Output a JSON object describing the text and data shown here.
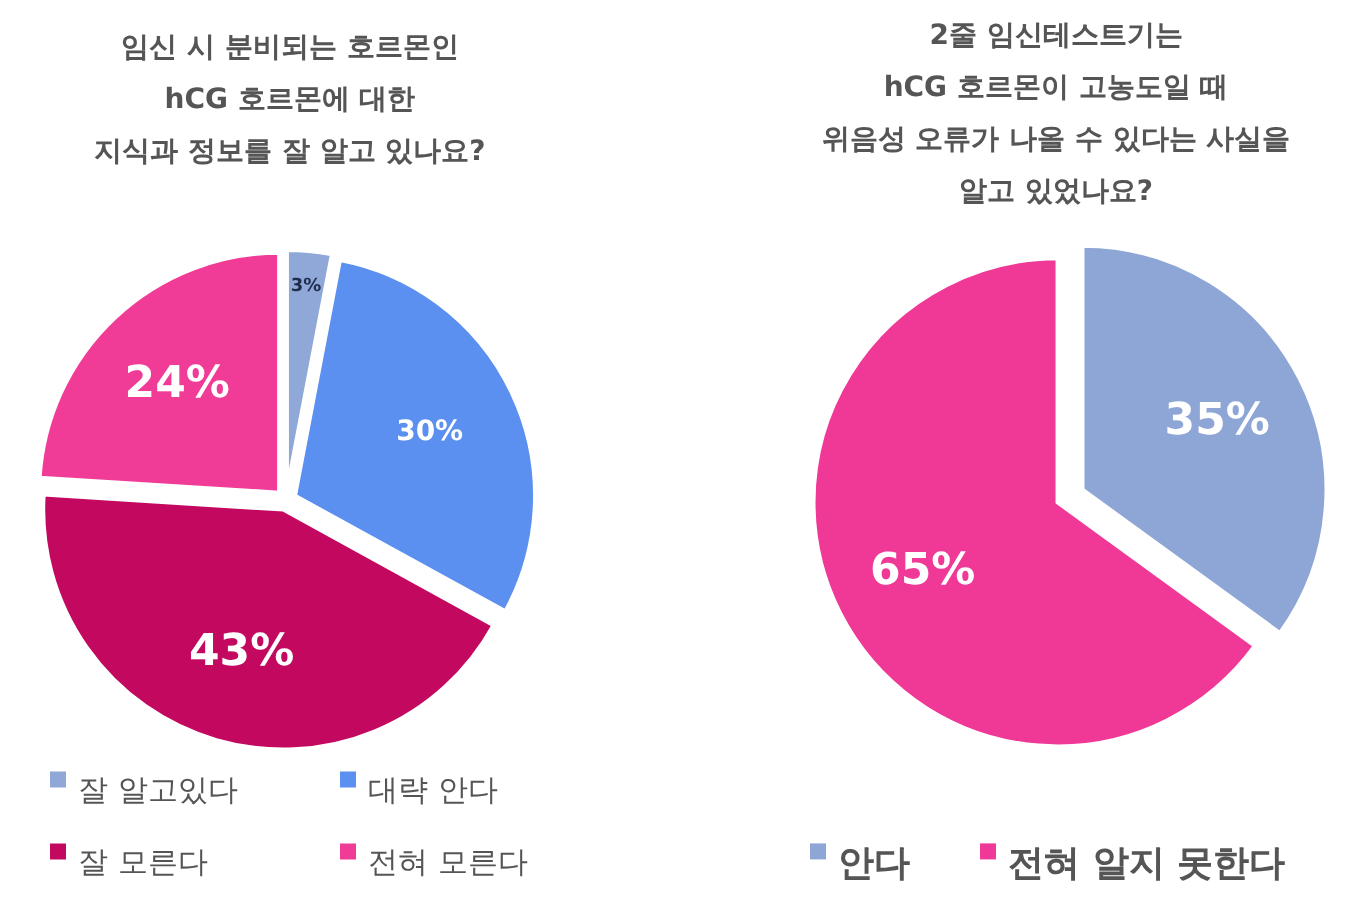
{
  "chart_data": [
    {
      "type": "pie",
      "title": "임신 시 분비되는 호르몬인\nhCG 호르몬에 대한\n지식과 정보를 잘 알고 있나요?",
      "categories": [
        "잘 알고있다",
        "대략 안다",
        "잘 모른다",
        "전혀 모른다"
      ],
      "values": [
        3,
        30,
        43,
        24
      ],
      "value_labels": [
        "3%",
        "30%",
        "43%",
        "24%"
      ],
      "colors": [
        "#8fa8d8",
        "#5b8ff0",
        "#c2095f",
        "#f03c96"
      ],
      "legend": "bottom"
    },
    {
      "type": "pie",
      "title": "2줄 임신테스트기는\nhCG 호르몬이 고농도일 때\n위음성 오류가 나올 수 있다는 사실을\n알고 있었나요?",
      "categories": [
        "안다",
        "전혀 알지 못한다"
      ],
      "values": [
        35,
        65
      ],
      "value_labels": [
        "35%",
        "65%"
      ],
      "colors": [
        "#8ea6d6",
        "#f03896"
      ],
      "legend": "bottom"
    }
  ]
}
